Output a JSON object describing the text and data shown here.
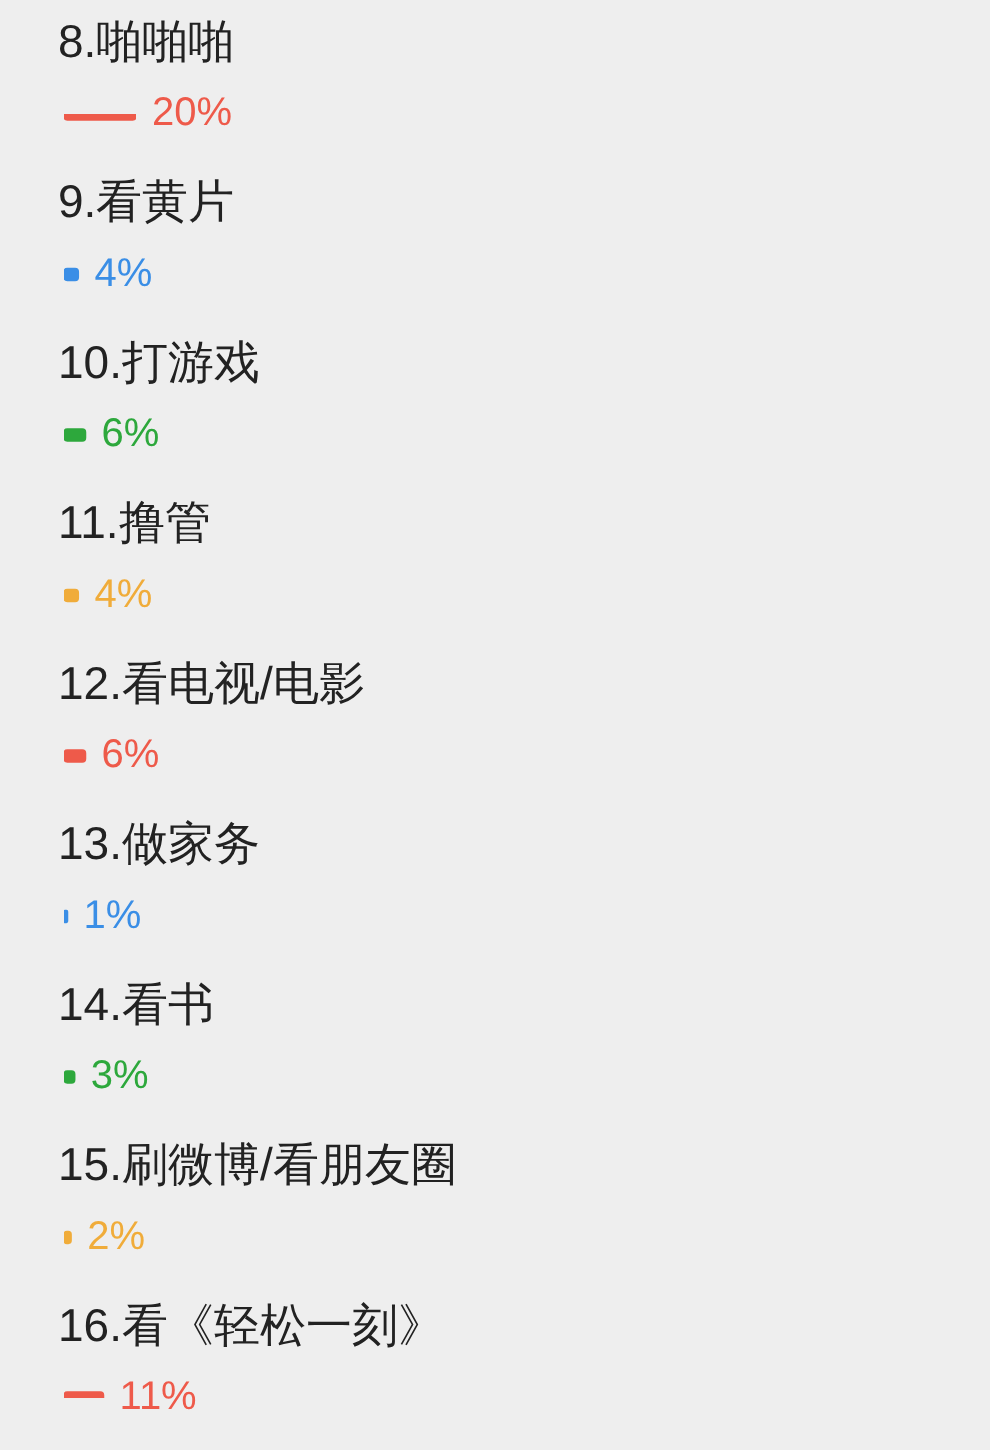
{
  "chart_data": {
    "type": "bar",
    "orientation": "horizontal",
    "categories": [
      "8.啪啪啪",
      "9.看黄片",
      "10.打游戏",
      "11.撸管",
      "12.看电视/电影",
      "13.做家务",
      "14.看书",
      "15.刷微博/看朋友圈",
      "16.看《轻松一刻》"
    ],
    "values": [
      20,
      4,
      6,
      4,
      6,
      1,
      3,
      2,
      11
    ],
    "colors": [
      "#ee5a4a",
      "#3a8ee6",
      "#2da83c",
      "#f0ac3a",
      "#ee5a4a",
      "#3a8ee6",
      "#2da83c",
      "#f0ac3a",
      "#ee5a4a"
    ],
    "value_labels": [
      "20%",
      "4%",
      "6%",
      "4%",
      "6%",
      "1%",
      "3%",
      "2%",
      "11%"
    ],
    "tick_labels": "y"
  }
}
